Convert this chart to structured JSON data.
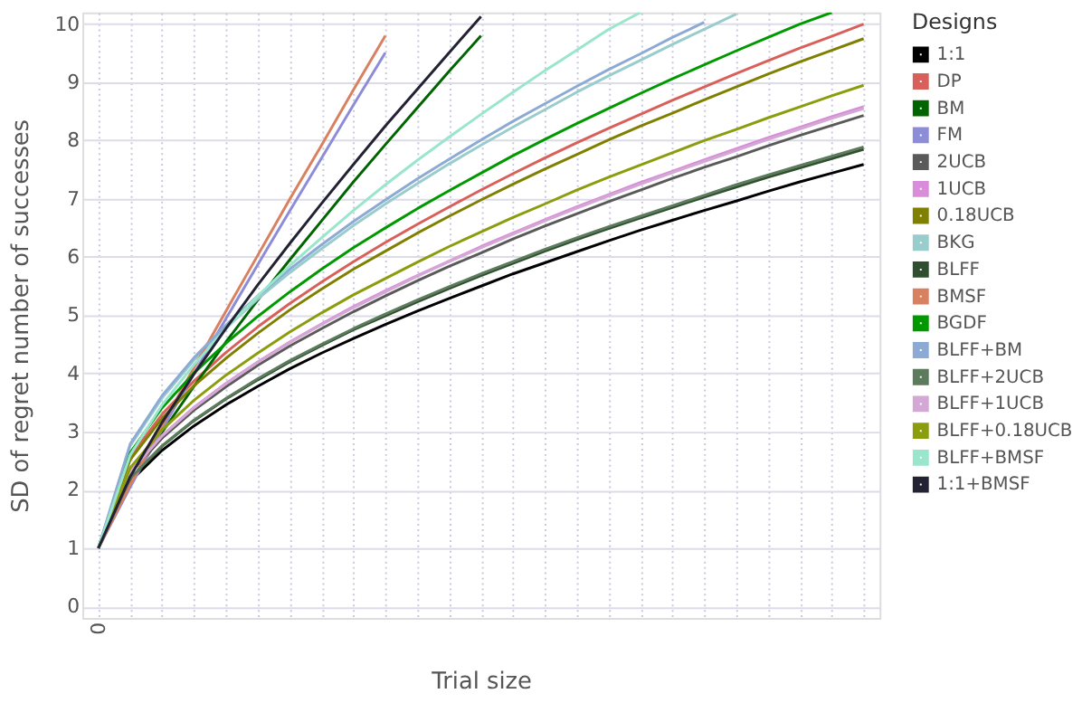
{
  "chart_data": {
    "type": "line",
    "xlabel": "Trial size",
    "ylabel": "SD of regret number of successes",
    "legend_title": "Designs",
    "legend": "right",
    "grid": true,
    "marker": "none",
    "line_style": "solid",
    "categories": [
      "0",
      null,
      null,
      null,
      null,
      null,
      null,
      null,
      null,
      null,
      null,
      null,
      null,
      null,
      null,
      null,
      null,
      null,
      null,
      null,
      null,
      null,
      null,
      null,
      null
    ],
    "ylim": [
      -0.2,
      10.2
    ],
    "yticks": [
      0,
      1,
      2,
      3,
      4,
      5,
      6,
      7,
      8,
      9,
      10
    ],
    "series": [
      {
        "name": "1:1",
        "color": "#000000",
        "values": [
          1,
          2.15,
          2.68,
          3.1,
          3.46,
          3.78,
          4.08,
          4.35,
          4.6,
          4.84,
          5.07,
          5.29,
          5.5,
          5.71,
          5.9,
          6.09,
          6.28,
          6.46,
          6.63,
          6.8,
          6.96,
          7.13,
          7.29,
          7.44,
          7.59
        ]
      },
      {
        "name": "DP",
        "color": "#d9605a",
        "values": [
          1,
          2.57,
          3.3,
          3.87,
          4.36,
          4.8,
          5.2,
          5.57,
          5.92,
          6.25,
          6.56,
          6.86,
          7.15,
          7.43,
          7.7,
          7.96,
          8.21,
          8.45,
          8.69,
          8.92,
          9.15,
          9.37,
          9.59,
          9.79,
          10.0
        ]
      },
      {
        "name": "BM",
        "color": "#006400",
        "values": [
          1,
          2.12,
          2.99,
          3.78,
          4.54,
          5.26,
          5.95,
          6.62,
          7.29,
          7.93,
          8.56,
          9.19,
          9.8,
          null,
          null,
          null,
          null,
          null,
          null,
          null,
          null,
          null,
          null,
          null,
          null
        ]
      },
      {
        "name": "FM",
        "color": "#8c8cd9",
        "values": [
          1,
          2.05,
          3.04,
          4.0,
          4.94,
          5.87,
          6.79,
          7.7,
          8.61,
          9.51,
          null,
          null,
          null,
          null,
          null,
          null,
          null,
          null,
          null,
          null,
          null,
          null,
          null,
          null,
          null
        ]
      },
      {
        "name": "2UCB",
        "color": "#5a5a5a",
        "values": [
          1,
          2.29,
          2.89,
          3.37,
          3.77,
          4.14,
          4.47,
          4.77,
          5.06,
          5.33,
          5.59,
          5.84,
          6.07,
          6.31,
          6.53,
          6.74,
          6.95,
          7.15,
          7.35,
          7.54,
          7.72,
          7.91,
          8.09,
          8.26,
          8.43
        ]
      },
      {
        "name": "1UCB",
        "color": "#d98cd9",
        "values": [
          1,
          2.32,
          2.93,
          3.42,
          3.83,
          4.2,
          4.54,
          4.85,
          5.15,
          5.42,
          5.68,
          5.93,
          6.18,
          6.41,
          6.64,
          6.86,
          7.07,
          7.28,
          7.47,
          7.67,
          7.86,
          8.05,
          8.23,
          8.41,
          8.58
        ]
      },
      {
        "name": "0.18UCB",
        "color": "#808000",
        "values": [
          1,
          2.52,
          3.23,
          3.79,
          4.26,
          4.69,
          5.09,
          5.45,
          5.79,
          6.1,
          6.41,
          6.7,
          6.98,
          7.25,
          7.51,
          7.76,
          8.01,
          8.25,
          8.47,
          8.7,
          8.92,
          9.14,
          9.35,
          9.55,
          9.75
        ]
      },
      {
        "name": "BKG",
        "color": "#99cccc",
        "values": [
          1,
          2.76,
          3.58,
          4.23,
          4.78,
          5.28,
          5.73,
          6.14,
          6.54,
          6.91,
          7.26,
          7.6,
          7.92,
          8.23,
          8.53,
          8.83,
          9.11,
          9.38,
          9.65,
          9.91,
          10.17,
          null,
          null,
          null,
          null
        ]
      },
      {
        "name": "BLFF",
        "color": "#2f4f2f",
        "values": [
          1,
          2.19,
          2.75,
          3.19,
          3.56,
          3.89,
          4.2,
          4.48,
          4.75,
          4.99,
          5.23,
          5.46,
          5.68,
          5.89,
          6.1,
          6.3,
          6.49,
          6.67,
          6.85,
          7.03,
          7.2,
          7.37,
          7.53,
          7.69,
          7.85
        ]
      },
      {
        "name": "BMSF",
        "color": "#d98060",
        "values": [
          1,
          2.09,
          3.11,
          4.1,
          5.07,
          6.03,
          6.99,
          7.92,
          8.87,
          9.8,
          null,
          null,
          null,
          null,
          null,
          null,
          null,
          null,
          null,
          null,
          null,
          null,
          null,
          null,
          null
        ]
      },
      {
        "name": "BGDF",
        "color": "#009900",
        "values": [
          1,
          2.64,
          3.41,
          4.01,
          4.52,
          4.98,
          5.4,
          5.79,
          6.16,
          6.5,
          6.83,
          7.14,
          7.44,
          7.74,
          8.02,
          8.29,
          8.55,
          8.81,
          9.06,
          9.3,
          9.54,
          9.77,
          10.0,
          10.2,
          null
        ]
      },
      {
        "name": "BLFF+BM",
        "color": "#8caad4",
        "values": [
          1,
          2.79,
          3.62,
          4.27,
          4.83,
          5.33,
          5.79,
          6.21,
          6.61,
          6.98,
          7.34,
          7.68,
          8.01,
          8.33,
          8.63,
          8.93,
          9.22,
          9.49,
          9.77,
          10.03,
          null,
          null,
          null,
          null,
          null
        ]
      },
      {
        "name": "BLFF+2UCB",
        "color": "#5c7a5c",
        "values": [
          1,
          2.2,
          2.76,
          3.2,
          3.57,
          3.91,
          4.22,
          4.5,
          4.77,
          5.02,
          5.26,
          5.49,
          5.71,
          5.92,
          6.13,
          6.33,
          6.52,
          6.7,
          6.88,
          7.06,
          7.24,
          7.41,
          7.57,
          7.73,
          7.89
        ]
      },
      {
        "name": "BLFF+1UCB",
        "color": "#d4a8d4",
        "values": [
          1,
          2.31,
          2.93,
          3.41,
          3.82,
          4.19,
          4.53,
          4.84,
          5.13,
          5.4,
          5.67,
          5.92,
          6.16,
          6.39,
          6.62,
          6.84,
          7.05,
          7.25,
          7.45,
          7.64,
          7.83,
          8.02,
          8.2,
          8.38,
          8.55
        ]
      },
      {
        "name": "BLFF+0.18UCB",
        "color": "#8b9c0c",
        "values": [
          1,
          2.38,
          3.03,
          3.54,
          3.97,
          4.35,
          4.71,
          5.04,
          5.35,
          5.63,
          5.91,
          6.18,
          6.43,
          6.68,
          6.91,
          7.15,
          7.37,
          7.58,
          7.79,
          8.0,
          8.19,
          8.39,
          8.58,
          8.77,
          8.95
        ]
      },
      {
        "name": "BLFF+BMSF",
        "color": "#99e6cc",
        "values": [
          1,
          2.6,
          3.46,
          4.15,
          4.77,
          5.33,
          5.85,
          6.33,
          6.8,
          7.24,
          7.66,
          8.06,
          8.45,
          8.83,
          9.2,
          9.55,
          9.91,
          10.2,
          null,
          null,
          null,
          null,
          null,
          null,
          null
        ]
      },
      {
        "name": "1:1+BMSF",
        "color": "#222233",
        "values": [
          1,
          2.23,
          3.16,
          3.99,
          4.77,
          5.52,
          6.23,
          6.92,
          7.59,
          8.25,
          8.88,
          9.51,
          10.13,
          null,
          null,
          null,
          null,
          null,
          null,
          null,
          null,
          null,
          null,
          null,
          null
        ]
      }
    ]
  }
}
